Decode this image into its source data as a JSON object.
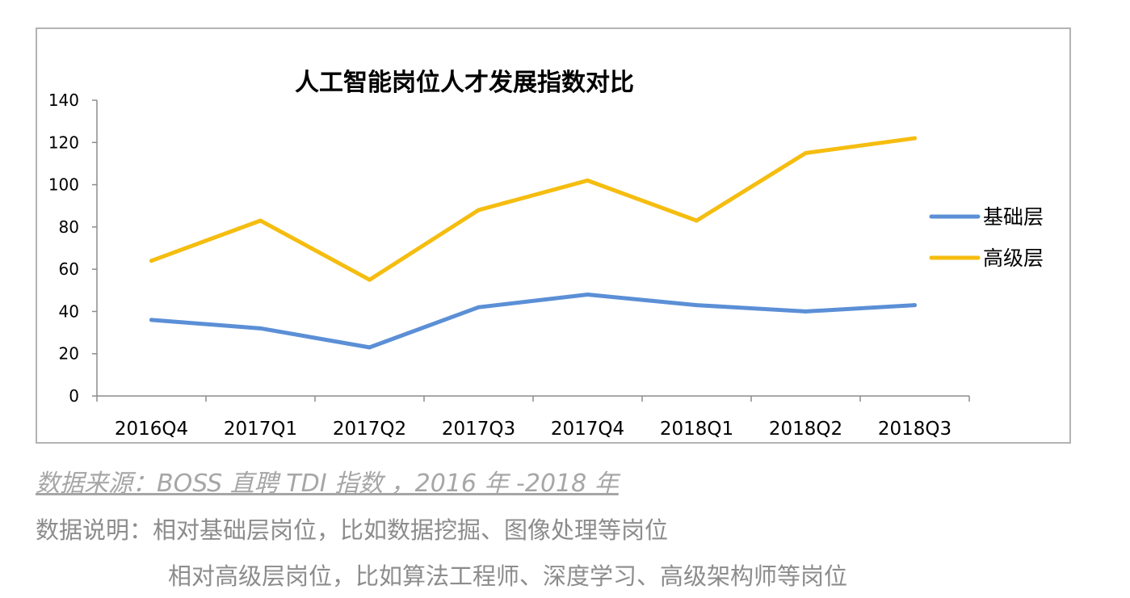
{
  "chart_data": {
    "type": "line",
    "title": "人工智能岗位人才发展指数对比",
    "categories": [
      "2016Q4",
      "2017Q1",
      "2017Q2",
      "2017Q3",
      "2017Q4",
      "2018Q1",
      "2018Q2",
      "2018Q3"
    ],
    "series": [
      {
        "name": "基础层",
        "color": "#5b8fd6",
        "values": [
          36,
          32,
          23,
          42,
          48,
          43,
          40,
          43
        ]
      },
      {
        "name": "高级层",
        "color": "#f5bd10",
        "values": [
          64,
          83,
          55,
          88,
          102,
          83,
          115,
          122
        ]
      }
    ],
    "ylim": [
      0,
      140
    ],
    "yticks": [
      "0",
      "20",
      "40",
      "60",
      "80",
      "100",
      "120",
      "140"
    ],
    "grid": false,
    "legend_position": "right",
    "xlabel": "",
    "ylabel": ""
  },
  "source_text": "数据来源：BOSS 直聘 TDI 指数 ，2016 年 -2018 年",
  "notes": {
    "label": "数据说明：",
    "line1": "相对基础层岗位，比如数据挖掘、图像处理等岗位",
    "line2": "相对高级层岗位，比如算法工程师、深度学习、高级架构师等岗位"
  }
}
